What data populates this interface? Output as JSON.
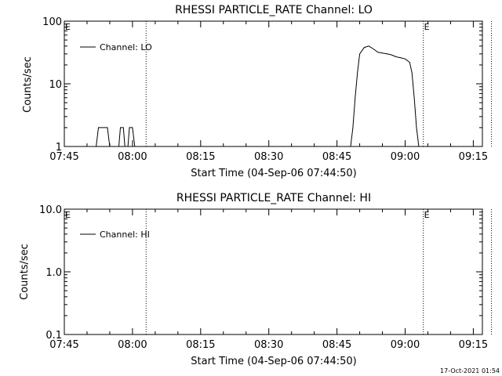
{
  "chart_data": [
    {
      "type": "line",
      "title": "RHESSI PARTICLE_RATE Channel: LO",
      "xlabel": "Start Time (04-Sep-06 07:44:50)",
      "ylabel": "Counts/sec",
      "y_scale": "log",
      "ylim": [
        1,
        100
      ],
      "y_ticks": [
        "1",
        "10",
        "100"
      ],
      "xlim_minutes_after_0745": [
        0,
        92
      ],
      "x_ticks": [
        "07:45",
        "08:00",
        "08:15",
        "08:30",
        "08:45",
        "09:00",
        "09:15"
      ],
      "legend": "top-left",
      "markers": [
        {
          "label": "E",
          "time": "07:45"
        },
        {
          "label": "",
          "time": "08:03"
        },
        {
          "label": "E",
          "time": "09:04"
        },
        {
          "label": "",
          "time": "09:19"
        }
      ],
      "series": [
        {
          "name": "Channel: LO",
          "x_time": [
            "07:52:00",
            "07:52:30",
            "07:54:30",
            "07:55:00",
            "07:57:00",
            "07:57:20",
            "07:58:00",
            "07:58:20",
            "07:59:00",
            "07:59:20",
            "08:00:00",
            "08:00:30",
            "08:48:00",
            "08:48:30",
            "08:49:00",
            "08:49:30",
            "08:50:00",
            "08:51:00",
            "08:52:00",
            "08:53:00",
            "08:54:00",
            "08:55:00",
            "08:56:00",
            "08:57:00",
            "08:58:00",
            "08:59:00",
            "09:00:00",
            "09:01:00",
            "09:01:30",
            "09:02:00",
            "09:02:30",
            "09:03:00"
          ],
          "values": [
            1,
            2,
            2,
            1,
            1,
            2,
            2,
            1,
            1,
            2,
            2,
            1,
            1,
            2,
            6,
            15,
            30,
            38,
            40,
            36,
            32,
            31,
            30,
            29,
            27,
            26,
            25,
            22,
            15,
            6,
            2,
            1
          ]
        }
      ]
    },
    {
      "type": "line",
      "title": "RHESSI PARTICLE_RATE Channel: HI",
      "xlabel": "Start Time (04-Sep-06 07:44:50)",
      "ylabel": "Counts/sec",
      "y_scale": "log",
      "ylim": [
        0.1,
        10
      ],
      "y_ticks": [
        "0.1",
        "1.0",
        "10.0"
      ],
      "xlim_minutes_after_0745": [
        0,
        92
      ],
      "x_ticks": [
        "07:45",
        "08:00",
        "08:15",
        "08:30",
        "08:45",
        "09:00",
        "09:15"
      ],
      "legend": "top-left",
      "markers": [
        {
          "label": "E",
          "time": "07:45"
        },
        {
          "label": "",
          "time": "08:03"
        },
        {
          "label": "E",
          "time": "09:04"
        },
        {
          "label": "",
          "time": "09:19"
        }
      ],
      "series": [
        {
          "name": "Channel: HI",
          "x_time": [],
          "values": []
        }
      ]
    }
  ],
  "footer": {
    "timestamp": "17-Oct-2021 01:54"
  }
}
